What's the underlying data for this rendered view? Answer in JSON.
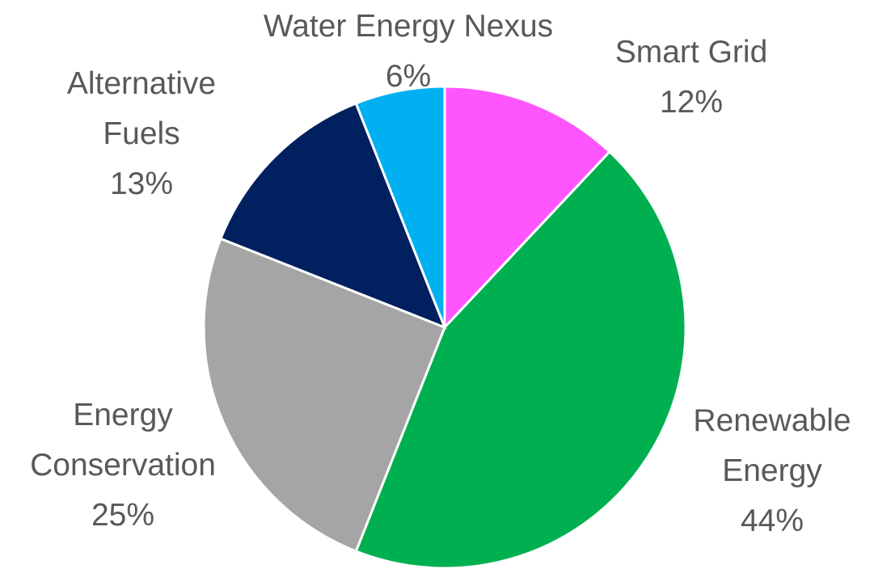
{
  "chart_data": {
    "type": "pie",
    "categories": [
      "Smart Grid",
      "Renewable Energy",
      "Energy Conservation",
      "Alternative Fuels",
      "Water Energy Nexus"
    ],
    "values": [
      12,
      44,
      25,
      13,
      6
    ],
    "value_labels": [
      "12%",
      "44%",
      "25%",
      "13%",
      "6%"
    ],
    "colors": [
      "#ff55ff",
      "#00b050",
      "#a5a5a5",
      "#002060",
      "#00b0f0"
    ]
  }
}
